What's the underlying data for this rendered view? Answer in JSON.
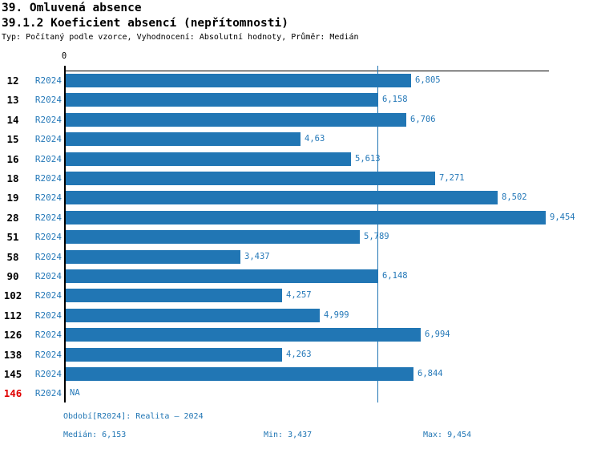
{
  "header": {
    "title1": "39. Omluvená absence",
    "title2": "39.1.2 Koeficient absencí (nepřítomnosti)",
    "subtitle": "Typ: Počítaný podle vzorce, Vyhodnocení: Absolutní hodnoty, Průměr: Medián"
  },
  "chart_data": {
    "type": "bar",
    "orientation": "horizontal",
    "series_label": "R2024",
    "categories": [
      "12",
      "13",
      "14",
      "15",
      "16",
      "18",
      "19",
      "28",
      "51",
      "58",
      "90",
      "102",
      "112",
      "126",
      "138",
      "145",
      "146"
    ],
    "values": [
      6.805,
      6.158,
      6.706,
      4.63,
      5.613,
      7.271,
      8.502,
      9.454,
      5.789,
      3.437,
      6.148,
      4.257,
      4.999,
      6.994,
      4.263,
      6.844,
      null
    ],
    "value_labels": [
      "6,805",
      "6,158",
      "6,706",
      "4,63",
      "5,613",
      "7,271",
      "8,502",
      "9,454",
      "5,789",
      "3,437",
      "6,148",
      "4,257",
      "4,999",
      "6,994",
      "4,263",
      "6,844",
      "NA"
    ],
    "highlight_category": "146",
    "zero_tick_label": "0",
    "xlim": [
      0,
      9.55
    ],
    "median_value": 6.153,
    "grid": false,
    "legend_position": "none",
    "bar_color": "#2176b4",
    "label_color": "#2478b8",
    "na_color": "#e00000",
    "axis_color": "#000000"
  },
  "footer": {
    "period": "Období[R2024]: Realita – 2024",
    "median": "Medián: 6,153",
    "min": "Min: 3,437",
    "max": "Max: 9,454"
  }
}
